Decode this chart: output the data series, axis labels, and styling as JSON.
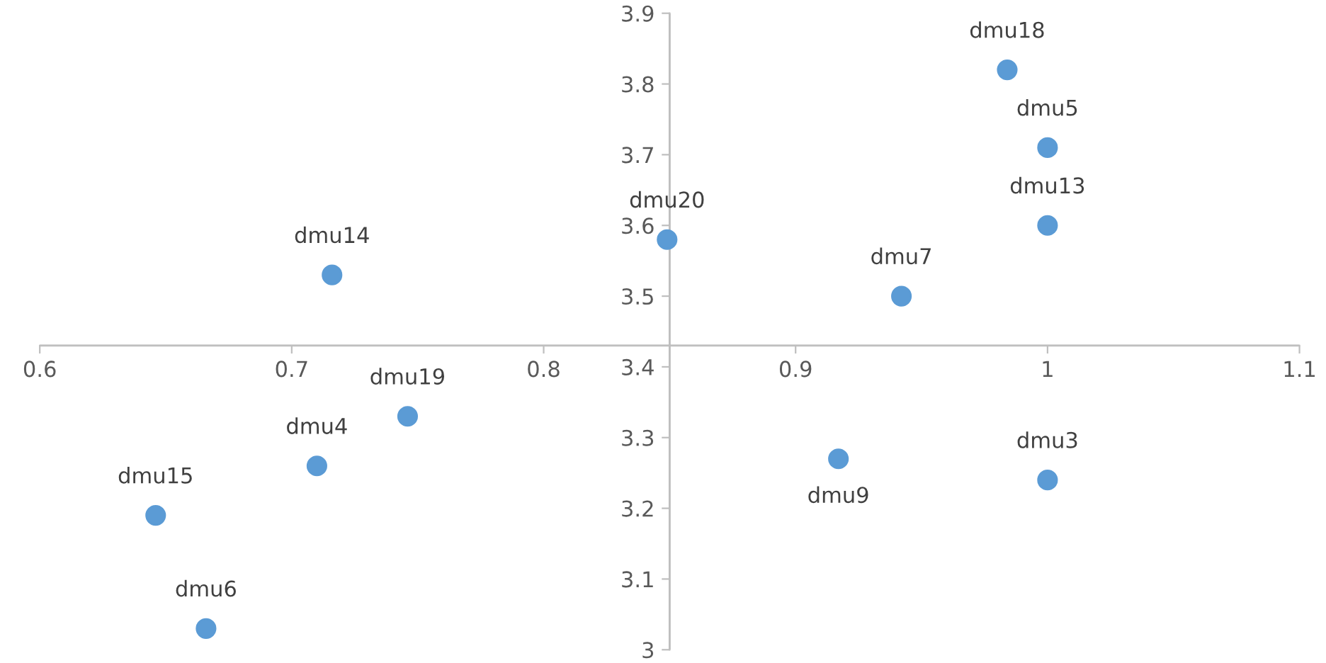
{
  "chart_data": {
    "type": "scatter",
    "marker": "circle",
    "grid": false,
    "legend": false,
    "xlim": [
      0.6,
      1.1
    ],
    "xticks": [
      0.6,
      0.7,
      0.8,
      0.9,
      1,
      1.1
    ],
    "ylim": [
      3,
      3.9
    ],
    "yticks": [
      3,
      3.1,
      3.2,
      3.3,
      3.4,
      3.5,
      3.6,
      3.7,
      3.8,
      3.9
    ],
    "ref_lines": [
      {
        "axis": "x",
        "value": 0.85
      },
      {
        "axis": "y",
        "value": 3.43
      }
    ],
    "series": [
      {
        "color": "#5b9bd5",
        "x": [
          0.984,
          1.0,
          1.0,
          0.849,
          0.942,
          0.716,
          0.746,
          0.71,
          0.646,
          0.666,
          0.917,
          1.0
        ],
        "values": [
          3.82,
          3.71,
          3.6,
          3.58,
          3.5,
          3.53,
          3.33,
          3.26,
          3.19,
          3.03,
          3.27,
          3.24
        ]
      }
    ],
    "annotations": [
      {
        "text": "dmu18",
        "x": 0.984,
        "y": 3.82
      },
      {
        "text": "dmu5",
        "x": 1.0,
        "y": 3.71
      },
      {
        "text": "dmu13",
        "x": 1.0,
        "y": 3.6
      },
      {
        "text": "dmu20",
        "x": 0.849,
        "y": 3.58
      },
      {
        "text": "dmu7",
        "x": 0.942,
        "y": 3.5
      },
      {
        "text": "dmu14",
        "x": 0.716,
        "y": 3.53
      },
      {
        "text": "dmu19",
        "x": 0.746,
        "y": 3.33
      },
      {
        "text": "dmu4",
        "x": 0.71,
        "y": 3.26
      },
      {
        "text": "dmu15",
        "x": 0.646,
        "y": 3.19
      },
      {
        "text": "dmu6",
        "x": 0.666,
        "y": 3.03
      },
      {
        "text": "dmu9",
        "x": 0.917,
        "y": 3.27
      },
      {
        "text": "dmu3",
        "x": 1.0,
        "y": 3.24
      }
    ]
  }
}
